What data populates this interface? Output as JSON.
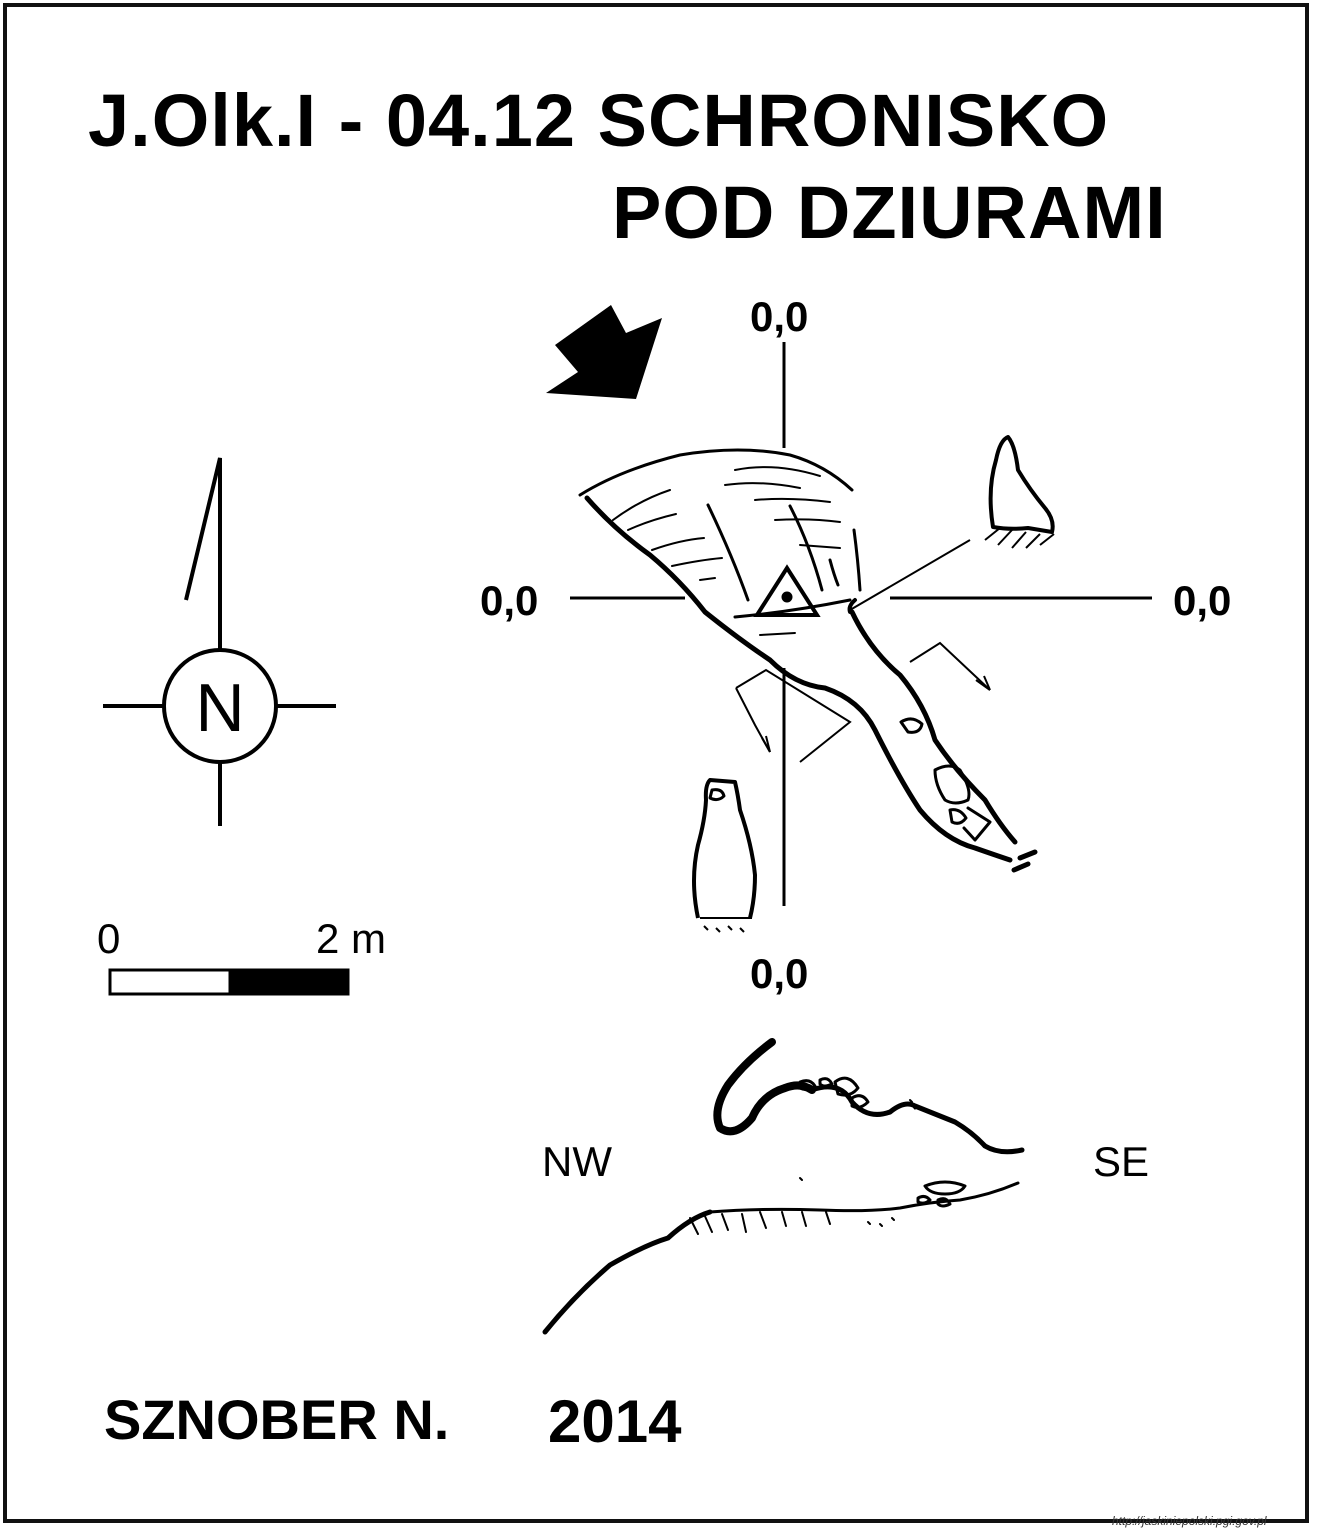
{
  "title": {
    "line1": "J.Olk.I - 04.12  SCHRONISKO",
    "line2": "POD DZIURAMI"
  },
  "plan": {
    "coord_top": "0,0",
    "coord_left": "0,0",
    "coord_right": "0,0",
    "coord_bottom": "0,0"
  },
  "north_arrow": {
    "letter": "N"
  },
  "scale_bar": {
    "start_label": "0",
    "end_label": "2 m"
  },
  "section": {
    "left_label": "NW",
    "right_label": "SE"
  },
  "author": {
    "name": "SZNOBER N.",
    "year": "2014"
  },
  "source": {
    "url": "http://jaskiniepolski.pgi.gov.pl"
  },
  "colors": {
    "ink": "#000000",
    "paper": "#ffffff"
  }
}
